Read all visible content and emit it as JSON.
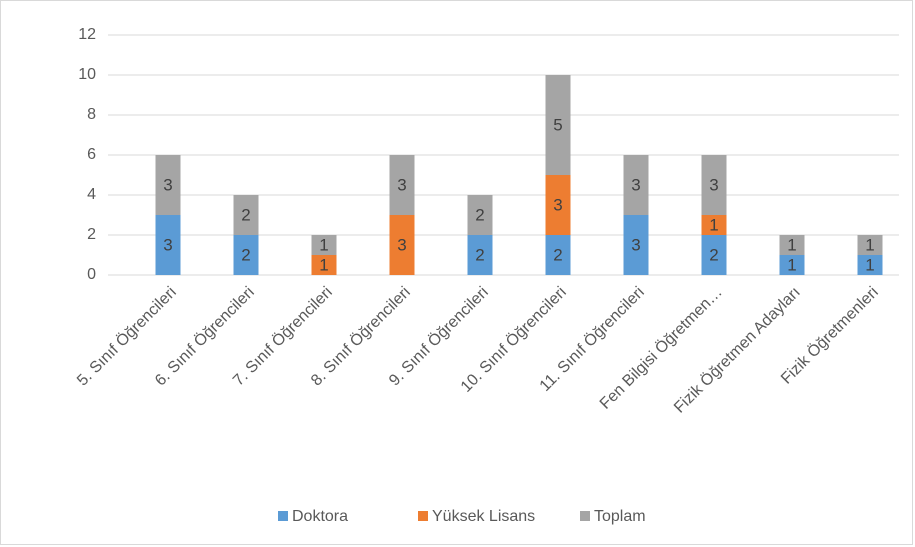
{
  "chart_data": {
    "type": "stacked_bar",
    "categories": [
      "5. Sınıf Öğrencileri",
      "6. Sınıf Öğrencileri",
      "7. Sınıf Öğrencileri",
      "8. Sınıf Öğrencileri",
      "9. Sınıf Öğrencileri",
      "10. Sınıf Öğrencileri",
      "11. Sınıf Öğrencileri",
      "Fen Bilgisi Öğretmen…",
      "Fizik Öğretmen Adayları",
      "Fizik Öğretmenleri"
    ],
    "series": [
      {
        "name": "Doktora",
        "color": "#5b9bd5",
        "values": [
          3,
          2,
          0,
          0,
          2,
          2,
          3,
          2,
          1,
          1
        ]
      },
      {
        "name": "Yüksek Lisans",
        "color": "#ed7d31",
        "values": [
          0,
          0,
          1,
          3,
          0,
          3,
          0,
          1,
          0,
          0
        ]
      },
      {
        "name": "Toplam",
        "color": "#a5a5a5",
        "values": [
          3,
          2,
          1,
          3,
          2,
          5,
          3,
          3,
          1,
          1
        ]
      }
    ],
    "ylim": [
      0,
      12
    ],
    "yticks": [
      0,
      2,
      4,
      6,
      8,
      10,
      12
    ],
    "grid": true,
    "legend": "bottom"
  }
}
